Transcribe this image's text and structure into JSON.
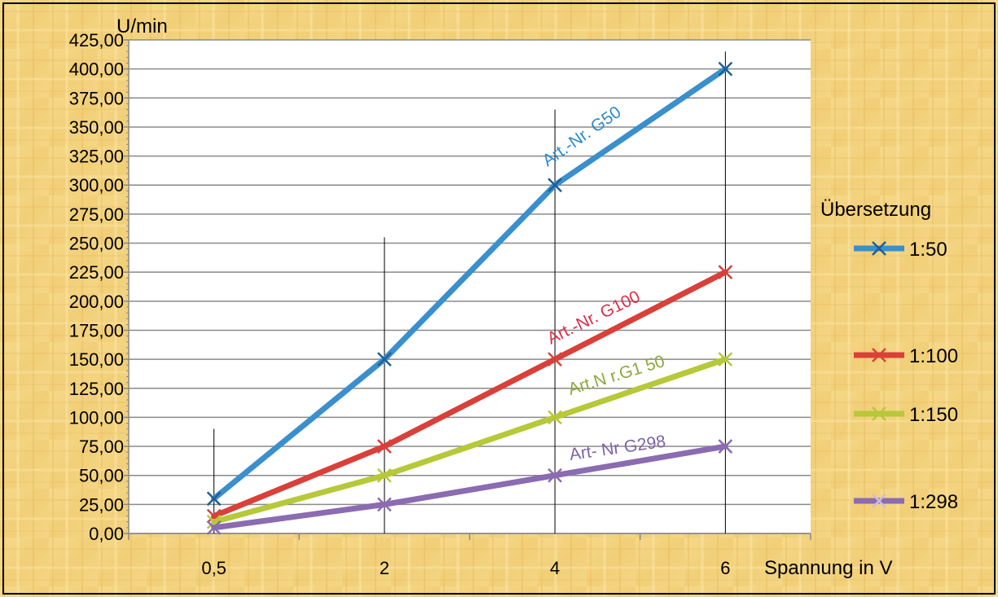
{
  "chart_data": {
    "type": "line",
    "ylabel": "U/min",
    "xlabel": "Spannung in V",
    "categories": [
      "0,5",
      "2",
      "4",
      "6"
    ],
    "ylim": [
      0,
      425
    ],
    "ystep": 25,
    "ytick_labels": [
      "0,00",
      "25,00",
      "50,00",
      "75,00",
      "100,00",
      "125,00",
      "150,00",
      "175,00",
      "200,00",
      "225,00",
      "250,00",
      "275,00",
      "300,00",
      "325,00",
      "350,00",
      "375,00",
      "400,00",
      "425,00"
    ],
    "legend_title": "Übersetzung",
    "legend_position": "right",
    "grid": "horizontal",
    "series": [
      {
        "name": "1:50",
        "values": [
          30,
          150,
          300,
          400
        ],
        "color": "#3a8fcd",
        "annotation": "Art.-Nr. G50"
      },
      {
        "name": "1:100",
        "values": [
          15,
          75,
          150,
          225
        ],
        "color": "#d9403a",
        "annotation": "Art.-Nr. G100"
      },
      {
        "name": "1:150",
        "values": [
          10,
          50,
          100,
          150
        ],
        "color": "#b7c838",
        "annotation": "Art.N r.G1 50"
      },
      {
        "name": "1:298",
        "values": [
          5,
          25,
          50,
          75
        ],
        "color": "#8b6bb1",
        "annotation": "Art- Nr  G298"
      }
    ],
    "annotation_colors": [
      "#2e8bc9",
      "#d8304a",
      "#8da83e",
      "#7f63a8"
    ],
    "marker": "x-icon",
    "background": "#f3d27c",
    "plot_background": "#ffffff"
  }
}
